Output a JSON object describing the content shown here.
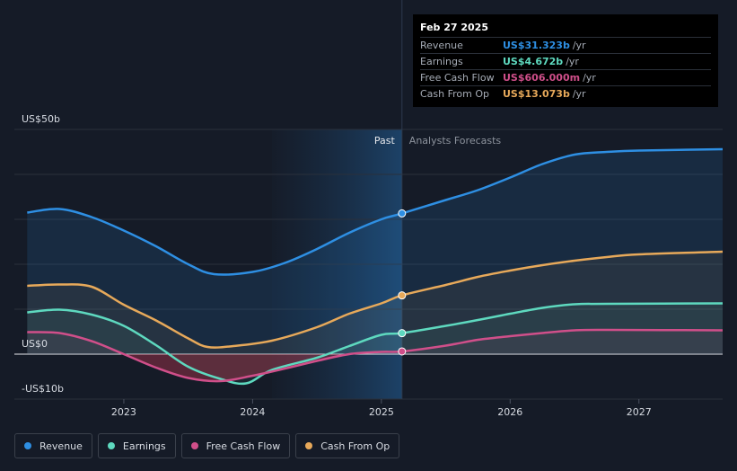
{
  "chart_data": {
    "type": "line",
    "x_unit": "year",
    "xlim": [
      2022.15,
      2027.65
    ],
    "ylim": [
      -10,
      50
    ],
    "y_tick_labels": [
      {
        "value": 50,
        "label": "US$50b"
      },
      {
        "value": 0,
        "label": "US$0"
      },
      {
        "value": -10,
        "label": "-US$10b"
      }
    ],
    "x_tick_labels": [
      "2023",
      "2024",
      "2025",
      "2026",
      "2027"
    ],
    "x_tick_values": [
      2023,
      2024,
      2025,
      2026,
      2027
    ],
    "past_label": "Past",
    "forecast_label": "Analysts Forecasts",
    "highlight_start": 2024.15,
    "divider_x": 2025.16,
    "series": [
      {
        "name": "Revenue",
        "color": "#2e8fe3",
        "points": [
          [
            2022.25,
            31.5
          ],
          [
            2022.5,
            32.3
          ],
          [
            2022.75,
            30.5
          ],
          [
            2023.0,
            27.5
          ],
          [
            2023.25,
            24.0
          ],
          [
            2023.5,
            20.0
          ],
          [
            2023.7,
            17.8
          ],
          [
            2024.0,
            18.3
          ],
          [
            2024.25,
            20.3
          ],
          [
            2024.5,
            23.4
          ],
          [
            2024.75,
            27.0
          ],
          [
            2025.0,
            30.0
          ],
          [
            2025.16,
            31.323
          ],
          [
            2025.5,
            34.3
          ],
          [
            2025.75,
            36.5
          ],
          [
            2026.0,
            39.3
          ],
          [
            2026.25,
            42.3
          ],
          [
            2026.5,
            44.4
          ],
          [
            2026.75,
            45.0
          ],
          [
            2027.0,
            45.3
          ],
          [
            2027.65,
            45.6
          ]
        ]
      },
      {
        "name": "Earnings",
        "color": "#5ed9bf",
        "points": [
          [
            2022.25,
            9.3
          ],
          [
            2022.5,
            9.9
          ],
          [
            2022.75,
            8.8
          ],
          [
            2023.0,
            6.3
          ],
          [
            2023.25,
            2.0
          ],
          [
            2023.5,
            -2.8
          ],
          [
            2023.75,
            -5.5
          ],
          [
            2023.95,
            -6.5
          ],
          [
            2024.15,
            -3.5
          ],
          [
            2024.5,
            -0.8
          ],
          [
            2024.75,
            1.8
          ],
          [
            2025.0,
            4.3
          ],
          [
            2025.16,
            4.672
          ],
          [
            2025.5,
            6.3
          ],
          [
            2025.75,
            7.6
          ],
          [
            2026.0,
            9.0
          ],
          [
            2026.25,
            10.3
          ],
          [
            2026.5,
            11.1
          ],
          [
            2026.75,
            11.2
          ],
          [
            2027.65,
            11.3
          ]
        ]
      },
      {
        "name": "Free Cash Flow",
        "color": "#d04f8a",
        "points": [
          [
            2022.25,
            4.9
          ],
          [
            2022.5,
            4.7
          ],
          [
            2022.75,
            2.9
          ],
          [
            2023.0,
            0.0
          ],
          [
            2023.25,
            -3.0
          ],
          [
            2023.5,
            -5.3
          ],
          [
            2023.75,
            -6.0
          ],
          [
            2024.0,
            -4.8
          ],
          [
            2024.25,
            -3.2
          ],
          [
            2024.5,
            -1.5
          ],
          [
            2024.75,
            0.0
          ],
          [
            2025.0,
            0.5
          ],
          [
            2025.16,
            0.606
          ],
          [
            2025.5,
            1.9
          ],
          [
            2025.75,
            3.2
          ],
          [
            2026.0,
            4.0
          ],
          [
            2026.25,
            4.7
          ],
          [
            2026.5,
            5.3
          ],
          [
            2026.75,
            5.4
          ],
          [
            2027.65,
            5.3
          ]
        ]
      },
      {
        "name": "Cash From Op",
        "color": "#e7a95a",
        "points": [
          [
            2022.25,
            15.2
          ],
          [
            2022.5,
            15.5
          ],
          [
            2022.75,
            15.0
          ],
          [
            2023.0,
            11.0
          ],
          [
            2023.25,
            7.5
          ],
          [
            2023.5,
            3.5
          ],
          [
            2023.65,
            1.6
          ],
          [
            2023.85,
            1.8
          ],
          [
            2024.15,
            3.0
          ],
          [
            2024.5,
            6.0
          ],
          [
            2024.75,
            9.0
          ],
          [
            2025.0,
            11.3
          ],
          [
            2025.16,
            13.073
          ],
          [
            2025.5,
            15.4
          ],
          [
            2025.75,
            17.2
          ],
          [
            2026.0,
            18.6
          ],
          [
            2026.25,
            19.8
          ],
          [
            2026.5,
            20.8
          ],
          [
            2026.75,
            21.6
          ],
          [
            2027.0,
            22.2
          ],
          [
            2027.65,
            22.8
          ]
        ]
      }
    ]
  },
  "tooltip": {
    "date": "Feb 27 2025",
    "rows": [
      {
        "label": "Revenue",
        "value": "US$31.323b",
        "unit": "/yr",
        "color": "#2e8fe3"
      },
      {
        "label": "Earnings",
        "value": "US$4.672b",
        "unit": "/yr",
        "color": "#5ed9bf"
      },
      {
        "label": "Free Cash Flow",
        "value": "US$606.000m",
        "unit": "/yr",
        "color": "#d04f8a"
      },
      {
        "label": "Cash From Op",
        "value": "US$13.073b",
        "unit": "/yr",
        "color": "#e7a95a"
      }
    ]
  },
  "legend": [
    {
      "label": "Revenue",
      "color": "#2e8fe3"
    },
    {
      "label": "Earnings",
      "color": "#5ed9bf"
    },
    {
      "label": "Free Cash Flow",
      "color": "#d04f8a"
    },
    {
      "label": "Cash From Op",
      "color": "#e7a95a"
    }
  ]
}
